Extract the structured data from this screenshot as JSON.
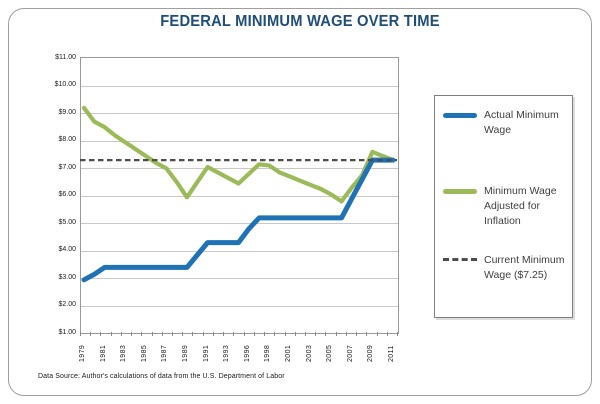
{
  "title": "FEDERAL MINIMUM WAGE OVER TIME",
  "source_note": "Data Source: Author's calculations of data from the U.S. Department of Labor",
  "legend": {
    "items": [
      {
        "label": "Actual Minimum Wage",
        "color": "#1F73B5",
        "style": "solid"
      },
      {
        "label": "Minimum Wage Adjusted for Inflation",
        "color": "#9BBB59",
        "style": "solid"
      },
      {
        "label": "Current Minimum Wage ($7.25)",
        "color": "#4D4D4D",
        "style": "dashed"
      }
    ]
  },
  "colors": {
    "title": "#1F4E79",
    "actual_line": "#1F73B5",
    "adjusted_line": "#9BBB59",
    "reference_line": "#4D4D4D",
    "gridline": "#C8C8C8",
    "plot_border": "#9A9A9A"
  },
  "chart_data": {
    "type": "line",
    "title": "FEDERAL MINIMUM WAGE OVER TIME",
    "xlabel": "",
    "ylabel": "",
    "ylim": [
      1,
      11
    ],
    "grid": "horizontal",
    "legend_position": "right",
    "ytick_values": [
      11,
      10,
      9,
      8,
      7,
      6,
      5,
      4,
      3,
      2,
      1
    ],
    "ytick_labels": [
      "$11.00",
      "$10.00",
      "$9.00",
      "$8.00",
      "$7.00",
      "$6.00",
      "$5.00",
      "$4.00",
      "$3.00",
      "$2.00",
      "$1.00"
    ],
    "x": [
      1979,
      1980,
      1981,
      1982,
      1983,
      1984,
      1985,
      1986,
      1987,
      1988,
      1989,
      1990,
      1991,
      1992,
      1993,
      1995,
      1996,
      1997,
      1998,
      2000,
      2001,
      2002,
      2003,
      2004,
      2005,
      2006,
      2007,
      2008,
      2009,
      2010,
      2011
    ],
    "x_tick_labels": [
      "1979",
      "1981",
      "1983",
      "1985",
      "1987",
      "1989",
      "1991",
      "1993",
      "1996",
      "1998",
      "2001",
      "2003",
      "2005",
      "2007",
      "2009",
      "2011"
    ],
    "series": [
      {
        "name": "Actual Minimum Wage",
        "color": "#1F73B5",
        "width": 5,
        "values": [
          2.9,
          3.1,
          3.35,
          3.35,
          3.35,
          3.35,
          3.35,
          3.35,
          3.35,
          3.35,
          3.35,
          3.8,
          4.25,
          4.25,
          4.25,
          4.25,
          4.75,
          5.15,
          5.15,
          5.15,
          5.15,
          5.15,
          5.15,
          5.15,
          5.15,
          5.15,
          5.85,
          6.55,
          7.25,
          7.25,
          7.25
        ]
      },
      {
        "name": "Minimum Wage Adjusted for Inflation",
        "color": "#9BBB59",
        "width": 4.2,
        "values": [
          9.15,
          8.65,
          8.45,
          8.15,
          7.9,
          7.65,
          7.4,
          7.15,
          6.95,
          6.45,
          5.9,
          6.45,
          7.0,
          6.8,
          6.6,
          6.4,
          6.75,
          7.1,
          7.05,
          6.8,
          6.65,
          6.5,
          6.35,
          6.2,
          6.0,
          5.75,
          6.25,
          6.7,
          7.55,
          7.4,
          7.25
        ]
      }
    ],
    "reference_line": {
      "name": "Current Minimum Wage ($7.25)",
      "value": 7.25,
      "color": "#4D4D4D",
      "style": "dashed",
      "width": 2.2
    }
  }
}
